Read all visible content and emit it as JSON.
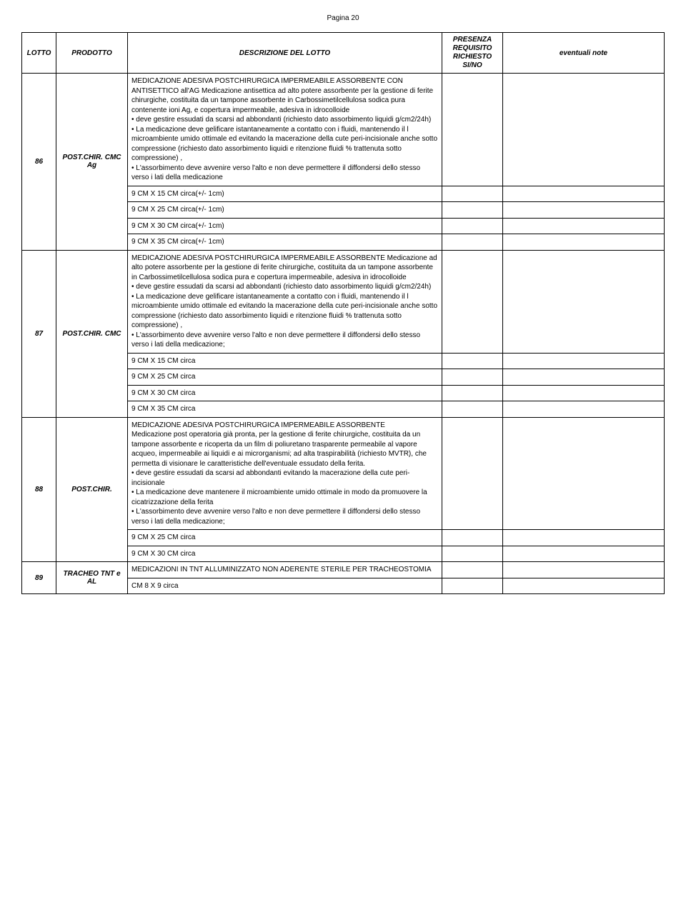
{
  "page_label": "Pagina 20",
  "headers": {
    "lotto": "LOTTO",
    "prodotto": "PRODOTTO",
    "descrizione": "DESCRIZIONE DEL LOTTO",
    "presenza": "PRESENZA REQUISITO RICHIESTO SI/NO",
    "note": "eventuali note"
  },
  "rows": [
    {
      "lotto": "86",
      "prodotto": "POST.CHIR. CMC Ag",
      "description": "MEDICAZIONE ADESIVA POSTCHIRURGICA IMPERMEABILE ASSORBENTE CON ANTISETTICO all'AG Medicazione antisettica ad alto potere assorbente per la gestione di ferite chirurgiche, costituita da un tampone assorbente in Carbossimetilcellulosa sodica pura contenente ioni Ag, e copertura impermeabile, adesiva in idrocolloide\n• deve gestire essudati da scarsi ad abbondanti (richiesto dato assorbimento liquidi  g/cm2/24h)\n• La medicazione deve gelificare istantaneamente a contatto con i fluidi,  mantenendo il l microambiente umido ottimale ed evitando la macerazione della cute peri-incisionale anche sotto compressione (richiesto dato assorbimento liquidi e ritenzione fluidi % trattenuta sotto compressione) ,\n• L'assorbimento deve avvenire verso l'alto e non deve permettere il diffondersi dello stesso verso i lati della medicazione",
      "sizes": [
        "9 CM X 15 CM  circa(+/- 1cm)",
        "9 CM X 25 CM  circa(+/- 1cm)",
        "9 CM X 30 CM  circa(+/- 1cm)",
        "9 CM X 35 CM  circa(+/- 1cm)"
      ]
    },
    {
      "lotto": "87",
      "prodotto": "POST.CHIR. CMC",
      "description": "MEDICAZIONE ADESIVA POSTCHIRURGICA IMPERMEABILE ASSORBENTE    Medicazione ad alto potere assorbente per la gestione di ferite chirurgiche, costituita da un tampone assorbente in Carbossimetilcellulosa sodica pura  e copertura impermeabile, adesiva in idrocolloide\n• deve gestire essudati da scarsi ad abbondanti (richiesto dato assorbimento liquidi  g/cm2/24h)\n• La medicazione deve gelificare istantaneamente a contatto con i fluidi,  mantenendo il l microambiente umido ottimale ed evitando la macerazione della cute peri-incisionale anche sotto compressione (richiesto dato assorbimento liquidi e ritenzione fluidi % trattenuta sotto compressione) ,\n• L'assorbimento deve avvenire verso l'alto e non deve permettere il diffondersi dello stesso verso i lati della medicazione;",
      "sizes": [
        "9 CM X 15 CM  circa",
        "9 CM X 25 CM  circa",
        "9 CM X 30 CM  circa",
        "9 CM X 35 CM  circa"
      ]
    },
    {
      "lotto": "88",
      "prodotto": "POST.CHIR.",
      "description": "MEDICAZIONE ADESIVA POSTCHIRURGICA IMPERMEABILE ASSORBENTE\nMedicazione  post operatoria già pronta, per la gestione di ferite chirurgiche, costituita da un tampone assorbente e ricoperta da un film di poliuretano trasparente permeabile al vapore acqueo, impermeabile ai liquidi e ai microrganismi; ad alta traspirabilità (richiesto MVTR), che permetta di visionare le caratteristiche dell'eventuale essudato della ferita.\n• deve gestire essudati da scarsi ad abbondanti evitando  la macerazione della cute peri-incisionale\n• La medicazione deve  mantenere il microambiente umido ottimale in modo da promuovere la cicatrizzazione della ferita\n• L'assorbimento deve avvenire verso l'alto e non deve permettere il diffondersi dello stesso verso i lati della medicazione;",
      "sizes": [
        "9 CM X 25 CM  circa",
        "9 CM X 30 CM  circa"
      ]
    },
    {
      "lotto": "89",
      "prodotto": "TRACHEO TNT e AL",
      "description": "MEDICAZIONI IN TNT ALLUMINIZZATO NON ADERENTE STERILE PER TRACHEOSTOMIA",
      "sizes": [
        "CM 8 X 9 circa"
      ]
    }
  ]
}
